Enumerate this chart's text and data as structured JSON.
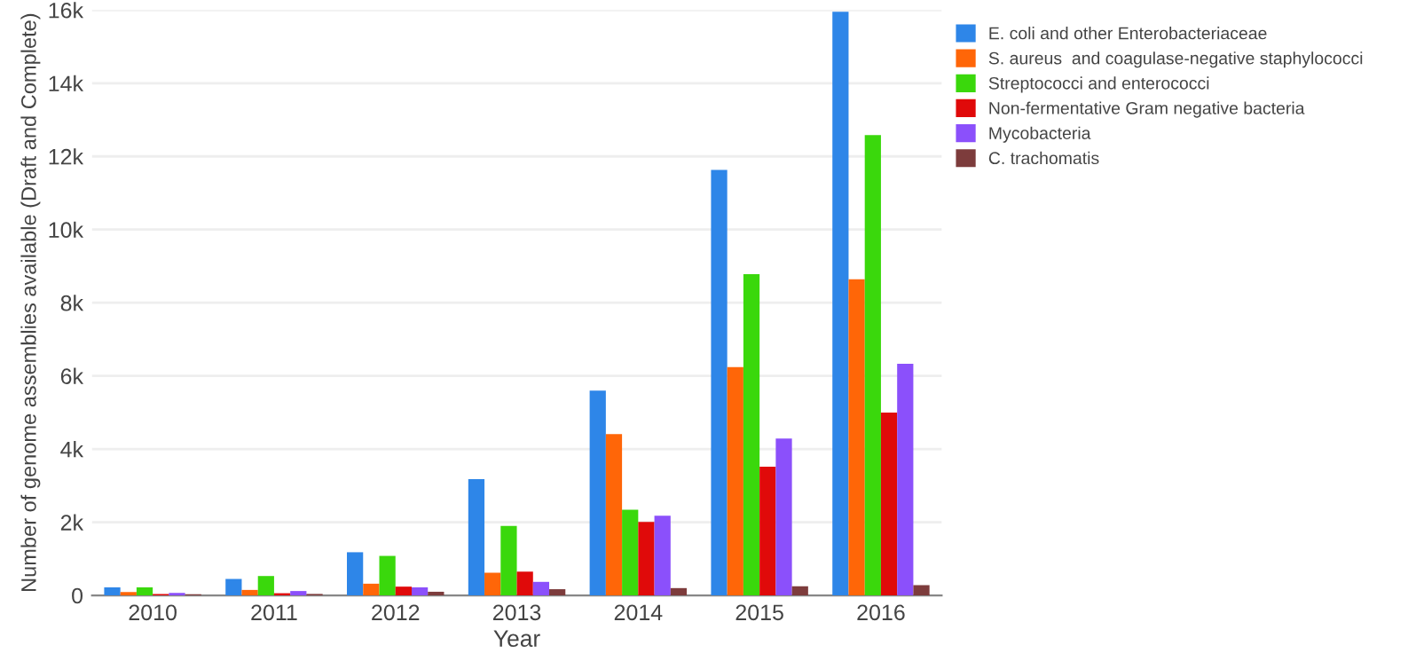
{
  "chart_data": {
    "type": "bar",
    "xlabel": "Year",
    "ylabel": "Number of genome assemblies available (Draft and Complete)",
    "categories": [
      "2010",
      "2011",
      "2012",
      "2013",
      "2014",
      "2015",
      "2016"
    ],
    "series": [
      {
        "name": "E. coli and other Enterobacteriaceae",
        "color": "#2e86e8",
        "values": [
          220,
          450,
          1180,
          3180,
          5600,
          11630,
          15950
        ]
      },
      {
        "name": "S. aureus  and coagulase-negative staphylococci",
        "color": "#ff6608",
        "values": [
          90,
          150,
          320,
          620,
          4410,
          6240,
          8640
        ]
      },
      {
        "name": "Streptococci and enterococci",
        "color": "#3ad80c",
        "values": [
          220,
          530,
          1080,
          1900,
          2340,
          8780,
          12580
        ]
      },
      {
        "name": "Non-fermentative Gram negative bacteria",
        "color": "#e00a0a",
        "values": [
          40,
          60,
          240,
          650,
          2010,
          3520,
          5000
        ]
      },
      {
        "name": "Mycobacteria",
        "color": "#8b50fb",
        "values": [
          70,
          120,
          220,
          370,
          2180,
          4290,
          6330
        ]
      },
      {
        "name": "C. trachomatis",
        "color": "#7d3c3c",
        "values": [
          30,
          40,
          100,
          170,
          200,
          250,
          280
        ]
      }
    ],
    "ylim": [
      0,
      16000
    ],
    "yticks": [
      0,
      {
        "value": 2000,
        "label": "2k"
      },
      {
        "value": 4000,
        "label": "4k"
      },
      {
        "value": 6000,
        "label": "6k"
      },
      {
        "value": 8000,
        "label": "8k"
      },
      {
        "value": 10000,
        "label": "10k"
      },
      {
        "value": 12000,
        "label": "12k"
      },
      {
        "value": 14000,
        "label": "14k"
      },
      {
        "value": 16000,
        "label": "16k"
      }
    ],
    "grid": "y",
    "legend": "top right"
  }
}
